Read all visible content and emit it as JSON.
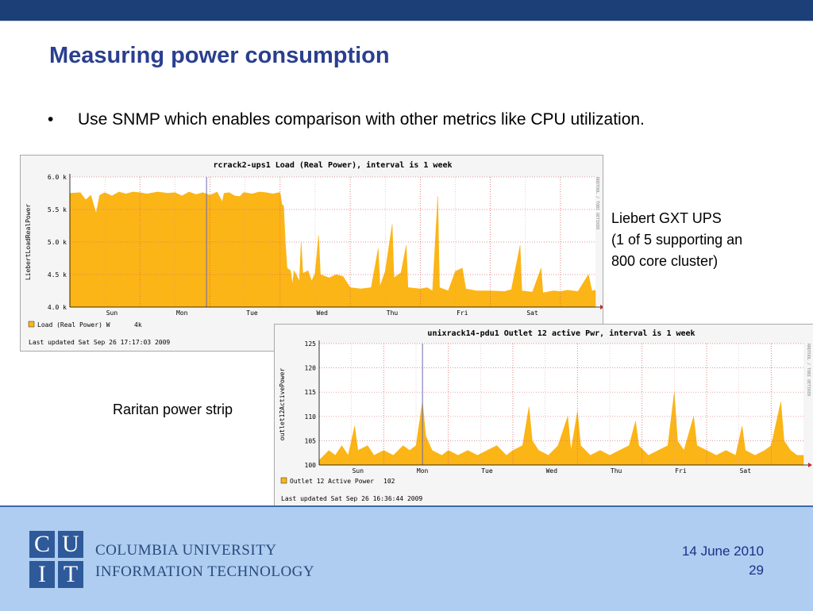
{
  "slide": {
    "title": "Measuring power consumption",
    "bullet": "Use SNMP which enables comparison with other metrics like CPU utilization.",
    "note_ups_line1": "Liebert GXT UPS",
    "note_ups_line2": "(1 of 5 supporting an",
    "note_ups_line3": "800 core cluster)",
    "note_raritan": "Raritan power strip"
  },
  "footer": {
    "logo_letters": [
      "C",
      "U",
      "I",
      "T"
    ],
    "university_line1": "COLUMBIA UNIVERSITY",
    "university_line2": "INFORMATION TECHNOLOGY",
    "date": "14 June 2010",
    "page_number": "29"
  },
  "chart_data": [
    {
      "type": "area",
      "title": "rcrack2-ups1 Load (Real Power), interval is 1 week",
      "ylabel": "LiebertLoadRealPower",
      "yticks": [
        "6.0 k",
        "5.5 k",
        "5.0 k",
        "4.5 k",
        "4.0 k"
      ],
      "ylim": [
        4000,
        6000
      ],
      "days": [
        "Sun",
        "Mon",
        "Tue",
        "Wed",
        "Thu",
        "Fri",
        "Sat"
      ],
      "legend": "Load (Real Power) W",
      "legend_value": "4k",
      "last_updated": "Last updated Sat Sep 26 17:17:03 2009",
      "side_text": "RRDTOOL / TOBI OETIKER",
      "fill_color": "#fbb516",
      "series": [
        {
          "x": 0.0,
          "y": 5750
        },
        {
          "x": 0.3,
          "y": 5760
        },
        {
          "x": 0.45,
          "y": 5650
        },
        {
          "x": 0.6,
          "y": 5720
        },
        {
          "x": 0.75,
          "y": 5440
        },
        {
          "x": 0.85,
          "y": 5720
        },
        {
          "x": 1.0,
          "y": 5760
        },
        {
          "x": 1.2,
          "y": 5710
        },
        {
          "x": 1.4,
          "y": 5770
        },
        {
          "x": 1.6,
          "y": 5740
        },
        {
          "x": 1.8,
          "y": 5770
        },
        {
          "x": 2.0,
          "y": 5760
        },
        {
          "x": 2.2,
          "y": 5740
        },
        {
          "x": 2.5,
          "y": 5770
        },
        {
          "x": 2.8,
          "y": 5750
        },
        {
          "x": 3.0,
          "y": 5760
        },
        {
          "x": 3.2,
          "y": 5710
        },
        {
          "x": 3.4,
          "y": 5770
        },
        {
          "x": 3.6,
          "y": 5730
        },
        {
          "x": 3.8,
          "y": 5760
        },
        {
          "x": 4.0,
          "y": 5720
        },
        {
          "x": 4.2,
          "y": 5770
        },
        {
          "x": 4.35,
          "y": 5620
        },
        {
          "x": 4.4,
          "y": 5750
        },
        {
          "x": 4.55,
          "y": 5760
        },
        {
          "x": 4.7,
          "y": 5710
        },
        {
          "x": 4.85,
          "y": 5700
        },
        {
          "x": 4.95,
          "y": 5760
        },
        {
          "x": 5.0,
          "y": 5760
        },
        {
          "x": 5.2,
          "y": 5740
        },
        {
          "x": 5.4,
          "y": 5770
        },
        {
          "x": 5.6,
          "y": 5760
        },
        {
          "x": 5.8,
          "y": 5740
        },
        {
          "x": 5.95,
          "y": 5760
        },
        {
          "x": 6.0,
          "y": 5760
        },
        {
          "x": 6.05,
          "y": 5580
        },
        {
          "x": 6.1,
          "y": 5560
        },
        {
          "x": 6.15,
          "y": 5000
        },
        {
          "x": 6.2,
          "y": 4600
        },
        {
          "x": 6.3,
          "y": 4560
        },
        {
          "x": 6.35,
          "y": 4350
        },
        {
          "x": 6.4,
          "y": 4560
        },
        {
          "x": 6.55,
          "y": 4400
        },
        {
          "x": 6.6,
          "y": 5000
        },
        {
          "x": 6.65,
          "y": 4520
        },
        {
          "x": 6.8,
          "y": 4560
        },
        {
          "x": 6.9,
          "y": 4400
        },
        {
          "x": 7.0,
          "y": 4520
        },
        {
          "x": 7.1,
          "y": 5100
        },
        {
          "x": 7.15,
          "y": 4500
        },
        {
          "x": 7.4,
          "y": 4450
        },
        {
          "x": 7.6,
          "y": 4500
        },
        {
          "x": 7.8,
          "y": 4470
        },
        {
          "x": 8.0,
          "y": 4300
        },
        {
          "x": 8.3,
          "y": 4280
        },
        {
          "x": 8.6,
          "y": 4300
        },
        {
          "x": 8.8,
          "y": 4900
        },
        {
          "x": 8.85,
          "y": 4320
        },
        {
          "x": 9.0,
          "y": 4550
        },
        {
          "x": 9.2,
          "y": 5270
        },
        {
          "x": 9.25,
          "y": 4450
        },
        {
          "x": 9.45,
          "y": 4530
        },
        {
          "x": 9.6,
          "y": 4950
        },
        {
          "x": 9.65,
          "y": 4300
        },
        {
          "x": 10.0,
          "y": 4280
        },
        {
          "x": 10.2,
          "y": 4300
        },
        {
          "x": 10.35,
          "y": 4250
        },
        {
          "x": 10.5,
          "y": 5700
        },
        {
          "x": 10.55,
          "y": 4300
        },
        {
          "x": 10.8,
          "y": 4250
        },
        {
          "x": 11.0,
          "y": 4550
        },
        {
          "x": 11.2,
          "y": 4600
        },
        {
          "x": 11.3,
          "y": 4280
        },
        {
          "x": 11.6,
          "y": 4250
        },
        {
          "x": 12.0,
          "y": 4250
        },
        {
          "x": 12.4,
          "y": 4240
        },
        {
          "x": 12.6,
          "y": 4270
        },
        {
          "x": 12.85,
          "y": 4950
        },
        {
          "x": 12.9,
          "y": 4250
        },
        {
          "x": 13.2,
          "y": 4230
        },
        {
          "x": 13.45,
          "y": 4600
        },
        {
          "x": 13.5,
          "y": 4220
        },
        {
          "x": 13.8,
          "y": 4250
        },
        {
          "x": 14.0,
          "y": 4240
        },
        {
          "x": 14.2,
          "y": 4260
        },
        {
          "x": 14.5,
          "y": 4240
        },
        {
          "x": 14.8,
          "y": 4500
        },
        {
          "x": 14.9,
          "y": 4250
        },
        {
          "x": 15.0,
          "y": 4260
        }
      ]
    },
    {
      "type": "area",
      "title": "unixrack14-pdu1 Outlet 12 active Pwr, interval is 1 week",
      "ylabel": "outlet12ActivePower",
      "yticks": [
        "125",
        "120",
        "115",
        "110",
        "105",
        "100"
      ],
      "ylim": [
        100,
        125
      ],
      "days": [
        "Sun",
        "Mon",
        "Tue",
        "Wed",
        "Thu",
        "Fri",
        "Sat"
      ],
      "legend": "Outlet 12 Active Power",
      "legend_value": "102",
      "last_updated": "Last updated Sat Sep 26 16:36:44 2009",
      "side_text": "RRDTOOL / TOBI OETIKER",
      "fill_color": "#fbb516",
      "series": [
        {
          "x": 0.0,
          "y": 101
        },
        {
          "x": 0.3,
          "y": 103
        },
        {
          "x": 0.5,
          "y": 102
        },
        {
          "x": 0.7,
          "y": 104
        },
        {
          "x": 0.9,
          "y": 102
        },
        {
          "x": 1.1,
          "y": 108
        },
        {
          "x": 1.2,
          "y": 103
        },
        {
          "x": 1.5,
          "y": 104
        },
        {
          "x": 1.7,
          "y": 102
        },
        {
          "x": 2.0,
          "y": 103
        },
        {
          "x": 2.3,
          "y": 102
        },
        {
          "x": 2.6,
          "y": 104
        },
        {
          "x": 2.8,
          "y": 103
        },
        {
          "x": 3.0,
          "y": 104
        },
        {
          "x": 3.2,
          "y": 113
        },
        {
          "x": 3.3,
          "y": 106
        },
        {
          "x": 3.5,
          "y": 103
        },
        {
          "x": 3.8,
          "y": 102
        },
        {
          "x": 4.0,
          "y": 103
        },
        {
          "x": 4.3,
          "y": 102
        },
        {
          "x": 4.6,
          "y": 103
        },
        {
          "x": 4.9,
          "y": 102
        },
        {
          "x": 5.2,
          "y": 103
        },
        {
          "x": 5.5,
          "y": 104
        },
        {
          "x": 5.8,
          "y": 102
        },
        {
          "x": 6.0,
          "y": 103
        },
        {
          "x": 6.3,
          "y": 104
        },
        {
          "x": 6.5,
          "y": 112
        },
        {
          "x": 6.6,
          "y": 105
        },
        {
          "x": 6.8,
          "y": 103
        },
        {
          "x": 7.1,
          "y": 102
        },
        {
          "x": 7.4,
          "y": 104
        },
        {
          "x": 7.7,
          "y": 110
        },
        {
          "x": 7.8,
          "y": 103
        },
        {
          "x": 8.0,
          "y": 111
        },
        {
          "x": 8.1,
          "y": 104
        },
        {
          "x": 8.4,
          "y": 102
        },
        {
          "x": 8.7,
          "y": 103
        },
        {
          "x": 9.0,
          "y": 102
        },
        {
          "x": 9.3,
          "y": 103
        },
        {
          "x": 9.6,
          "y": 104
        },
        {
          "x": 9.8,
          "y": 109
        },
        {
          "x": 9.9,
          "y": 104
        },
        {
          "x": 10.2,
          "y": 102
        },
        {
          "x": 10.5,
          "y": 103
        },
        {
          "x": 10.8,
          "y": 104
        },
        {
          "x": 11.0,
          "y": 115
        },
        {
          "x": 11.1,
          "y": 105
        },
        {
          "x": 11.3,
          "y": 103
        },
        {
          "x": 11.6,
          "y": 110
        },
        {
          "x": 11.7,
          "y": 104
        },
        {
          "x": 12.0,
          "y": 103
        },
        {
          "x": 12.3,
          "y": 102
        },
        {
          "x": 12.6,
          "y": 103
        },
        {
          "x": 12.9,
          "y": 102
        },
        {
          "x": 13.1,
          "y": 108
        },
        {
          "x": 13.2,
          "y": 103
        },
        {
          "x": 13.5,
          "y": 102
        },
        {
          "x": 13.8,
          "y": 103
        },
        {
          "x": 14.0,
          "y": 104
        },
        {
          "x": 14.3,
          "y": 113
        },
        {
          "x": 14.4,
          "y": 105
        },
        {
          "x": 14.6,
          "y": 103
        },
        {
          "x": 14.8,
          "y": 102
        },
        {
          "x": 15.0,
          "y": 102
        }
      ]
    }
  ]
}
